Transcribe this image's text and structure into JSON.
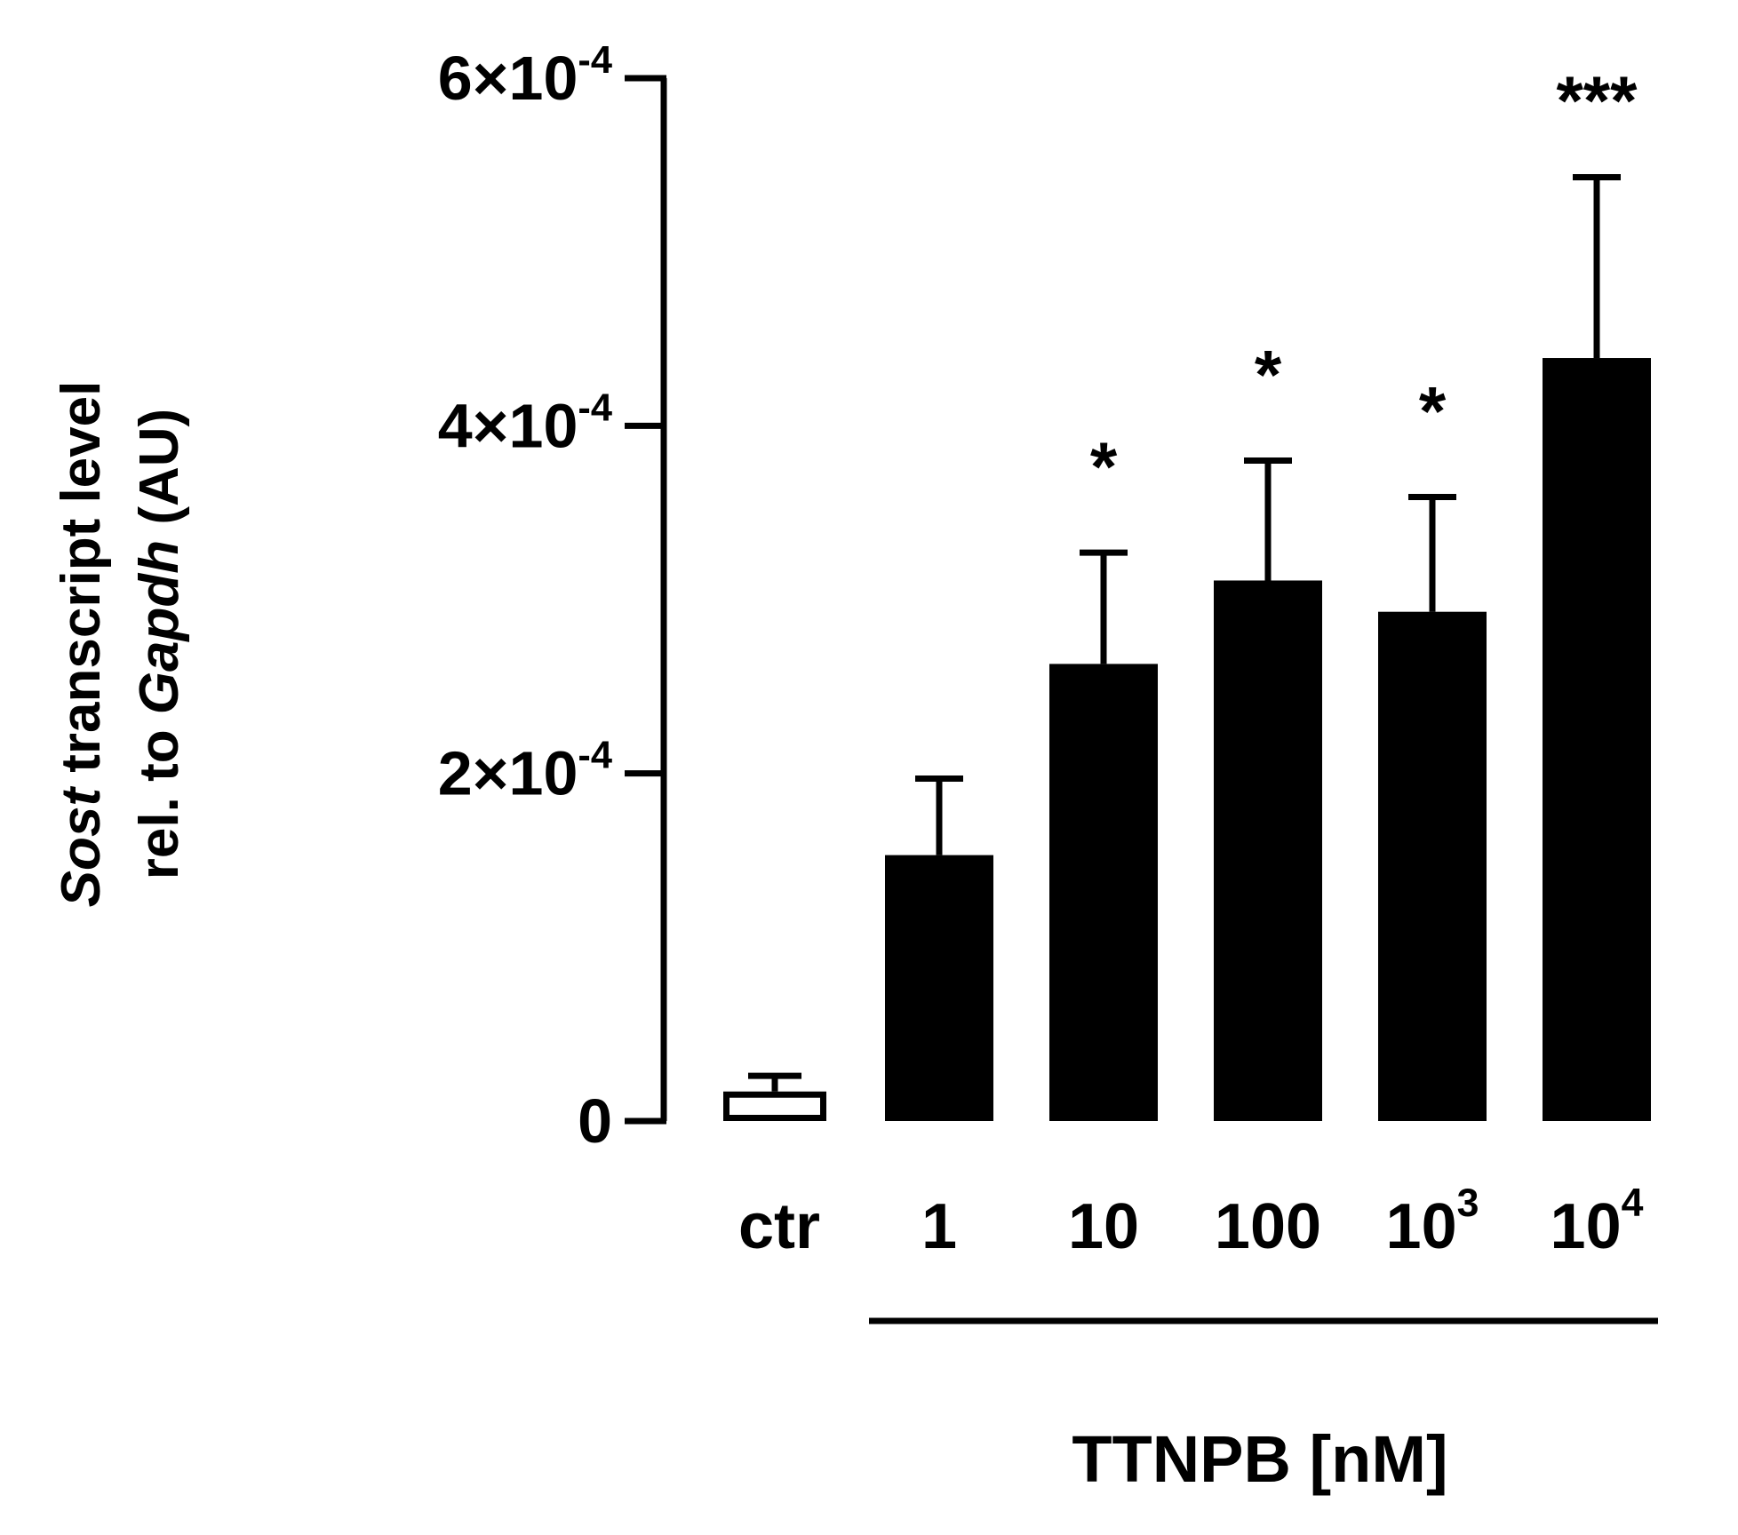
{
  "chart_data": {
    "type": "bar",
    "title": "",
    "ylabel": {
      "line1": [
        {
          "text": "Sost",
          "italic": true
        },
        {
          "text": " transcript level",
          "italic": false
        }
      ],
      "line2": [
        {
          "text": "rel. to ",
          "italic": false
        },
        {
          "text": "Gapdh",
          "italic": true
        },
        {
          "text": " (AU)",
          "italic": false
        }
      ]
    },
    "xlabel": "TTNPB [nM]",
    "ylim": [
      0,
      0.0006
    ],
    "yticks": [
      {
        "value": 0,
        "mantissa": "0",
        "exponent": ""
      },
      {
        "value": 0.0002,
        "mantissa": "2×10",
        "exponent": "-4"
      },
      {
        "value": 0.0004,
        "mantissa": "4×10",
        "exponent": "-4"
      },
      {
        "value": 0.0006,
        "mantissa": "6×10",
        "exponent": "-4"
      }
    ],
    "categories": [
      {
        "base": "ctr",
        "exponent": ""
      },
      {
        "base": "1",
        "exponent": ""
      },
      {
        "base": "10",
        "exponent": ""
      },
      {
        "base": "100",
        "exponent": ""
      },
      {
        "base": "10",
        "exponent": "3"
      },
      {
        "base": "10",
        "exponent": "4"
      }
    ],
    "values": [
      1.7e-05,
      0.000153,
      0.000263,
      0.000311,
      0.000293,
      0.000439
    ],
    "errors": [
      9e-06,
      4.4e-05,
      6.4e-05,
      6.9e-05,
      6.6e-05,
      0.000104
    ],
    "significance": [
      "",
      "",
      "*",
      "*",
      "*",
      "***"
    ],
    "fill": [
      "#ffffff",
      "#000000",
      "#000000",
      "#000000",
      "#000000",
      "#000000"
    ],
    "grid": false,
    "legend": "none"
  }
}
